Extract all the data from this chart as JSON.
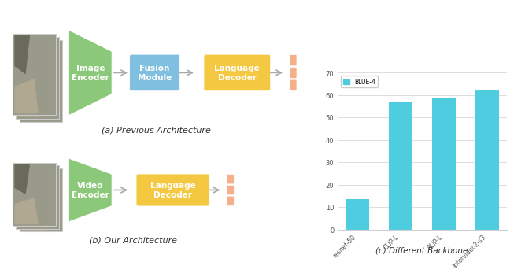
{
  "bar_categories": [
    "resnet-50",
    "CLIP-L",
    "BLIP-L",
    "Intervideo2-s3"
  ],
  "bar_values": [
    13.5,
    57.0,
    59.0,
    62.5
  ],
  "bar_color": "#4ECDE0",
  "bar_ylim": [
    0,
    70
  ],
  "bar_yticks": [
    0,
    10,
    20,
    30,
    40,
    50,
    60,
    70
  ],
  "legend_label": "BLUE-4",
  "caption_a": "(a) Previous Architecture",
  "caption_b": "(b) Our Architecture",
  "caption_c": "(c) Different Backbone",
  "bg_color": "#ffffff",
  "grid_color": "#d0d0d0",
  "box_fusion_color": "#7FBFDF",
  "box_lang_color_top": "#F5C842",
  "box_lang_color_bot": "#F5C842",
  "box_encoder_color": "#8CC87A",
  "token_color": "#F5B08A",
  "arrow_color": "#999999",
  "caption_color": "#333333",
  "tick_color": "#555555"
}
